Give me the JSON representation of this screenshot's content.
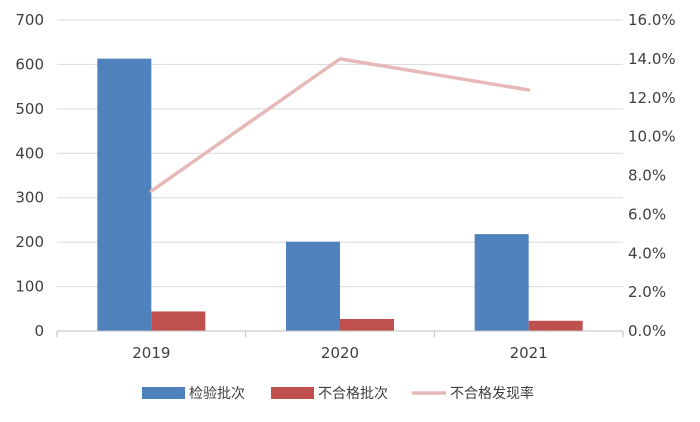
{
  "chart_data": {
    "type": "bar",
    "categories": [
      "2019",
      "2020",
      "2021"
    ],
    "series": [
      {
        "name": "检验批次",
        "kind": "bar",
        "axis": "left",
        "color": "#4f81bd",
        "values": [
          613,
          201,
          218
        ]
      },
      {
        "name": "不合格批次",
        "kind": "bar",
        "axis": "left",
        "color": "#c0504d",
        "values": [
          44,
          27,
          23
        ]
      },
      {
        "name": "不合格发现率",
        "kind": "line",
        "axis": "right",
        "color": "#e6b9b8",
        "values": [
          7.2,
          14.0,
          12.4
        ]
      }
    ],
    "left_axis": {
      "ylim": [
        0,
        700
      ],
      "ticks": [
        "0",
        "100",
        "200",
        "300",
        "400",
        "500",
        "600",
        "700"
      ]
    },
    "right_axis": {
      "ylim": [
        0,
        16
      ],
      "ticks": [
        "0.0%",
        "2.0%",
        "4.0%",
        "6.0%",
        "8.0%",
        "10.0%",
        "12.0%",
        "14.0%",
        "16.0%"
      ]
    },
    "grid": true,
    "legend_position": "bottom"
  }
}
